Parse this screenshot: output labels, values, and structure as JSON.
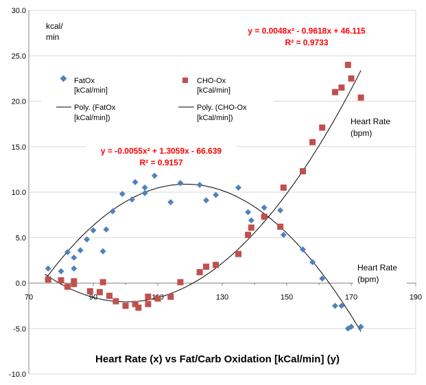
{
  "chart_data": {
    "type": "scatter",
    "title": "Heart Rate (x) vs Fat/Carb Oxidation [kCal/min] (y)",
    "ylabel_lines": [
      "kcal/",
      "min"
    ],
    "xlabel_right_lines": [
      "Heart Rate",
      "(bpm)"
    ],
    "xlabel_top_lines": [
      "Heart Rate",
      "(bpm)"
    ],
    "xlim": [
      70,
      190
    ],
    "ylim": [
      -10,
      30
    ],
    "x_ticks": [
      "70",
      "90",
      "110",
      "130",
      "150",
      "170",
      "190"
    ],
    "y_ticks": [
      "-10.0",
      "-5.0",
      "0.0",
      "5.0",
      "10.0",
      "15.0",
      "20.0",
      "25.0",
      "30.0"
    ],
    "grid": "horizontal",
    "legend": {
      "placement": "top-left",
      "entries": [
        {
          "lines": [
            "FatOx",
            "[kCal/min]"
          ],
          "marker": "diamond"
        },
        {
          "lines": [
            "CHO-Ox",
            "[kCal/min]"
          ],
          "marker": "square"
        },
        {
          "lines": [
            "Poly. (FatOx",
            "[kCal/min])"
          ],
          "marker": "line"
        },
        {
          "lines": [
            "Poly. (CHO-Ox",
            "[kCal/min])"
          ],
          "marker": "line"
        }
      ]
    },
    "colors": {
      "fatox": "#4F81BD",
      "chox": "#C0504D",
      "trend": "#000000",
      "equation": "#FF0000",
      "grid": "#d9d9d9"
    },
    "series": [
      {
        "name": "FatOx [kCal/min]",
        "marker": "diamond",
        "points": [
          [
            76,
            1.6
          ],
          [
            80,
            1.3
          ],
          [
            82,
            3.4
          ],
          [
            84,
            2.8
          ],
          [
            84,
            1.6
          ],
          [
            86,
            3.6
          ],
          [
            88,
            4.8
          ],
          [
            90,
            5.8
          ],
          [
            93,
            3.5
          ],
          [
            94,
            5.9
          ],
          [
            96,
            7.9
          ],
          [
            99,
            9.8
          ],
          [
            102,
            9.2
          ],
          [
            103,
            11.1
          ],
          [
            106,
            9.9
          ],
          [
            106,
            10.5
          ],
          [
            109,
            11.8
          ],
          [
            114,
            8.9
          ],
          [
            117,
            11.0
          ],
          [
            123,
            10.8
          ],
          [
            125,
            9.1
          ],
          [
            128,
            9.7
          ],
          [
            135,
            10.5
          ],
          [
            138,
            7.8
          ],
          [
            139,
            6.9
          ],
          [
            143,
            8.3
          ],
          [
            148,
            8.0
          ],
          [
            149,
            5.3
          ],
          [
            155,
            3.7
          ],
          [
            158,
            2.3
          ],
          [
            161,
            0.5
          ],
          [
            165,
            -2.5
          ],
          [
            167,
            -2.5
          ],
          [
            169,
            -5.0
          ],
          [
            170,
            -4.8
          ],
          [
            173,
            -4.8
          ]
        ]
      },
      {
        "name": "CHO-Ox [kCal/min]",
        "marker": "square",
        "points": [
          [
            76,
            0.4
          ],
          [
            80,
            0.3
          ],
          [
            82,
            -0.4
          ],
          [
            84,
            0.2
          ],
          [
            84,
            -0.1
          ],
          [
            89,
            -0.9
          ],
          [
            92,
            -1.0
          ],
          [
            93,
            0.1
          ],
          [
            95,
            -1.4
          ],
          [
            97,
            -2.0
          ],
          [
            100,
            -2.5
          ],
          [
            103,
            -2.3
          ],
          [
            104,
            -2.7
          ],
          [
            107,
            -2.3
          ],
          [
            107,
            -1.5
          ],
          [
            110,
            -1.7
          ],
          [
            114,
            -1.5
          ],
          [
            117,
            0.1
          ],
          [
            123,
            1.2
          ],
          [
            125,
            1.8
          ],
          [
            128,
            2.0
          ],
          [
            135,
            3.2
          ],
          [
            138,
            5.3
          ],
          [
            139,
            6.1
          ],
          [
            143,
            7.3
          ],
          [
            148,
            6.2
          ],
          [
            149,
            10.5
          ],
          [
            155,
            12.3
          ],
          [
            158,
            15.5
          ],
          [
            161,
            17.1
          ],
          [
            165,
            21.0
          ],
          [
            167,
            21.5
          ],
          [
            169,
            24.0
          ],
          [
            170,
            22.5
          ],
          [
            173,
            20.4
          ]
        ]
      }
    ],
    "trendlines": [
      {
        "name": "Poly. (FatOx [kCal/min])",
        "coeffs": [
          -0.0055,
          1.3059,
          -66.639
        ],
        "x_range": [
          75,
          173
        ]
      },
      {
        "name": "Poly. (CHO-Ox [kCal/min])",
        "coeffs": [
          0.0048,
          -0.9618,
          46.115
        ],
        "x_range": [
          75,
          173
        ]
      }
    ],
    "annotations": [
      {
        "equation": "y = -0.0055x² + 1.3059x - 66.639",
        "r2": "R² = 0.9157"
      },
      {
        "equation": "y = 0.0048x² - 0.9618x + 46.115",
        "r2": "R² = 0.9733"
      }
    ]
  }
}
